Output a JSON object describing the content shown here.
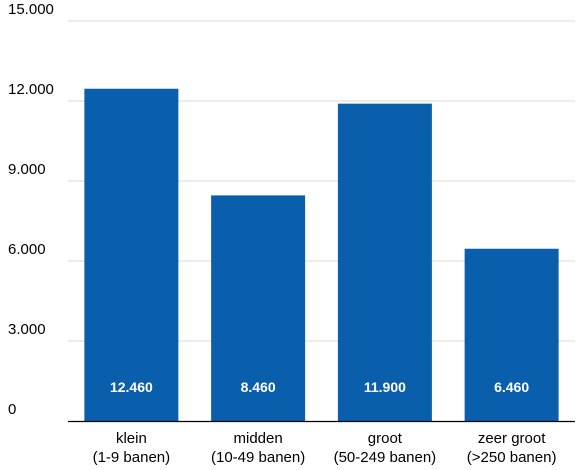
{
  "chart_data": {
    "type": "bar",
    "categories": [
      [
        "klein",
        "(1-9 banen)"
      ],
      [
        "midden",
        "(10-49 banen)"
      ],
      [
        "groot",
        "(50-249 banen)"
      ],
      [
        "zeer groot",
        "(>250 banen)"
      ]
    ],
    "values": [
      12460,
      8460,
      11900,
      6460
    ],
    "value_labels": [
      "12.460",
      "8.460",
      "11.900",
      "6.460"
    ],
    "yticks": [
      0,
      3000,
      6000,
      9000,
      12000,
      15000
    ],
    "ytick_labels": [
      "0",
      "3.000",
      "6.000",
      "9.000",
      "12.000",
      "15.000"
    ],
    "ylim": [
      0,
      15000
    ],
    "grid": true,
    "bar_color": "#0a5fad",
    "grid_color": "#d9d9d9",
    "axis_color": "#000000"
  }
}
